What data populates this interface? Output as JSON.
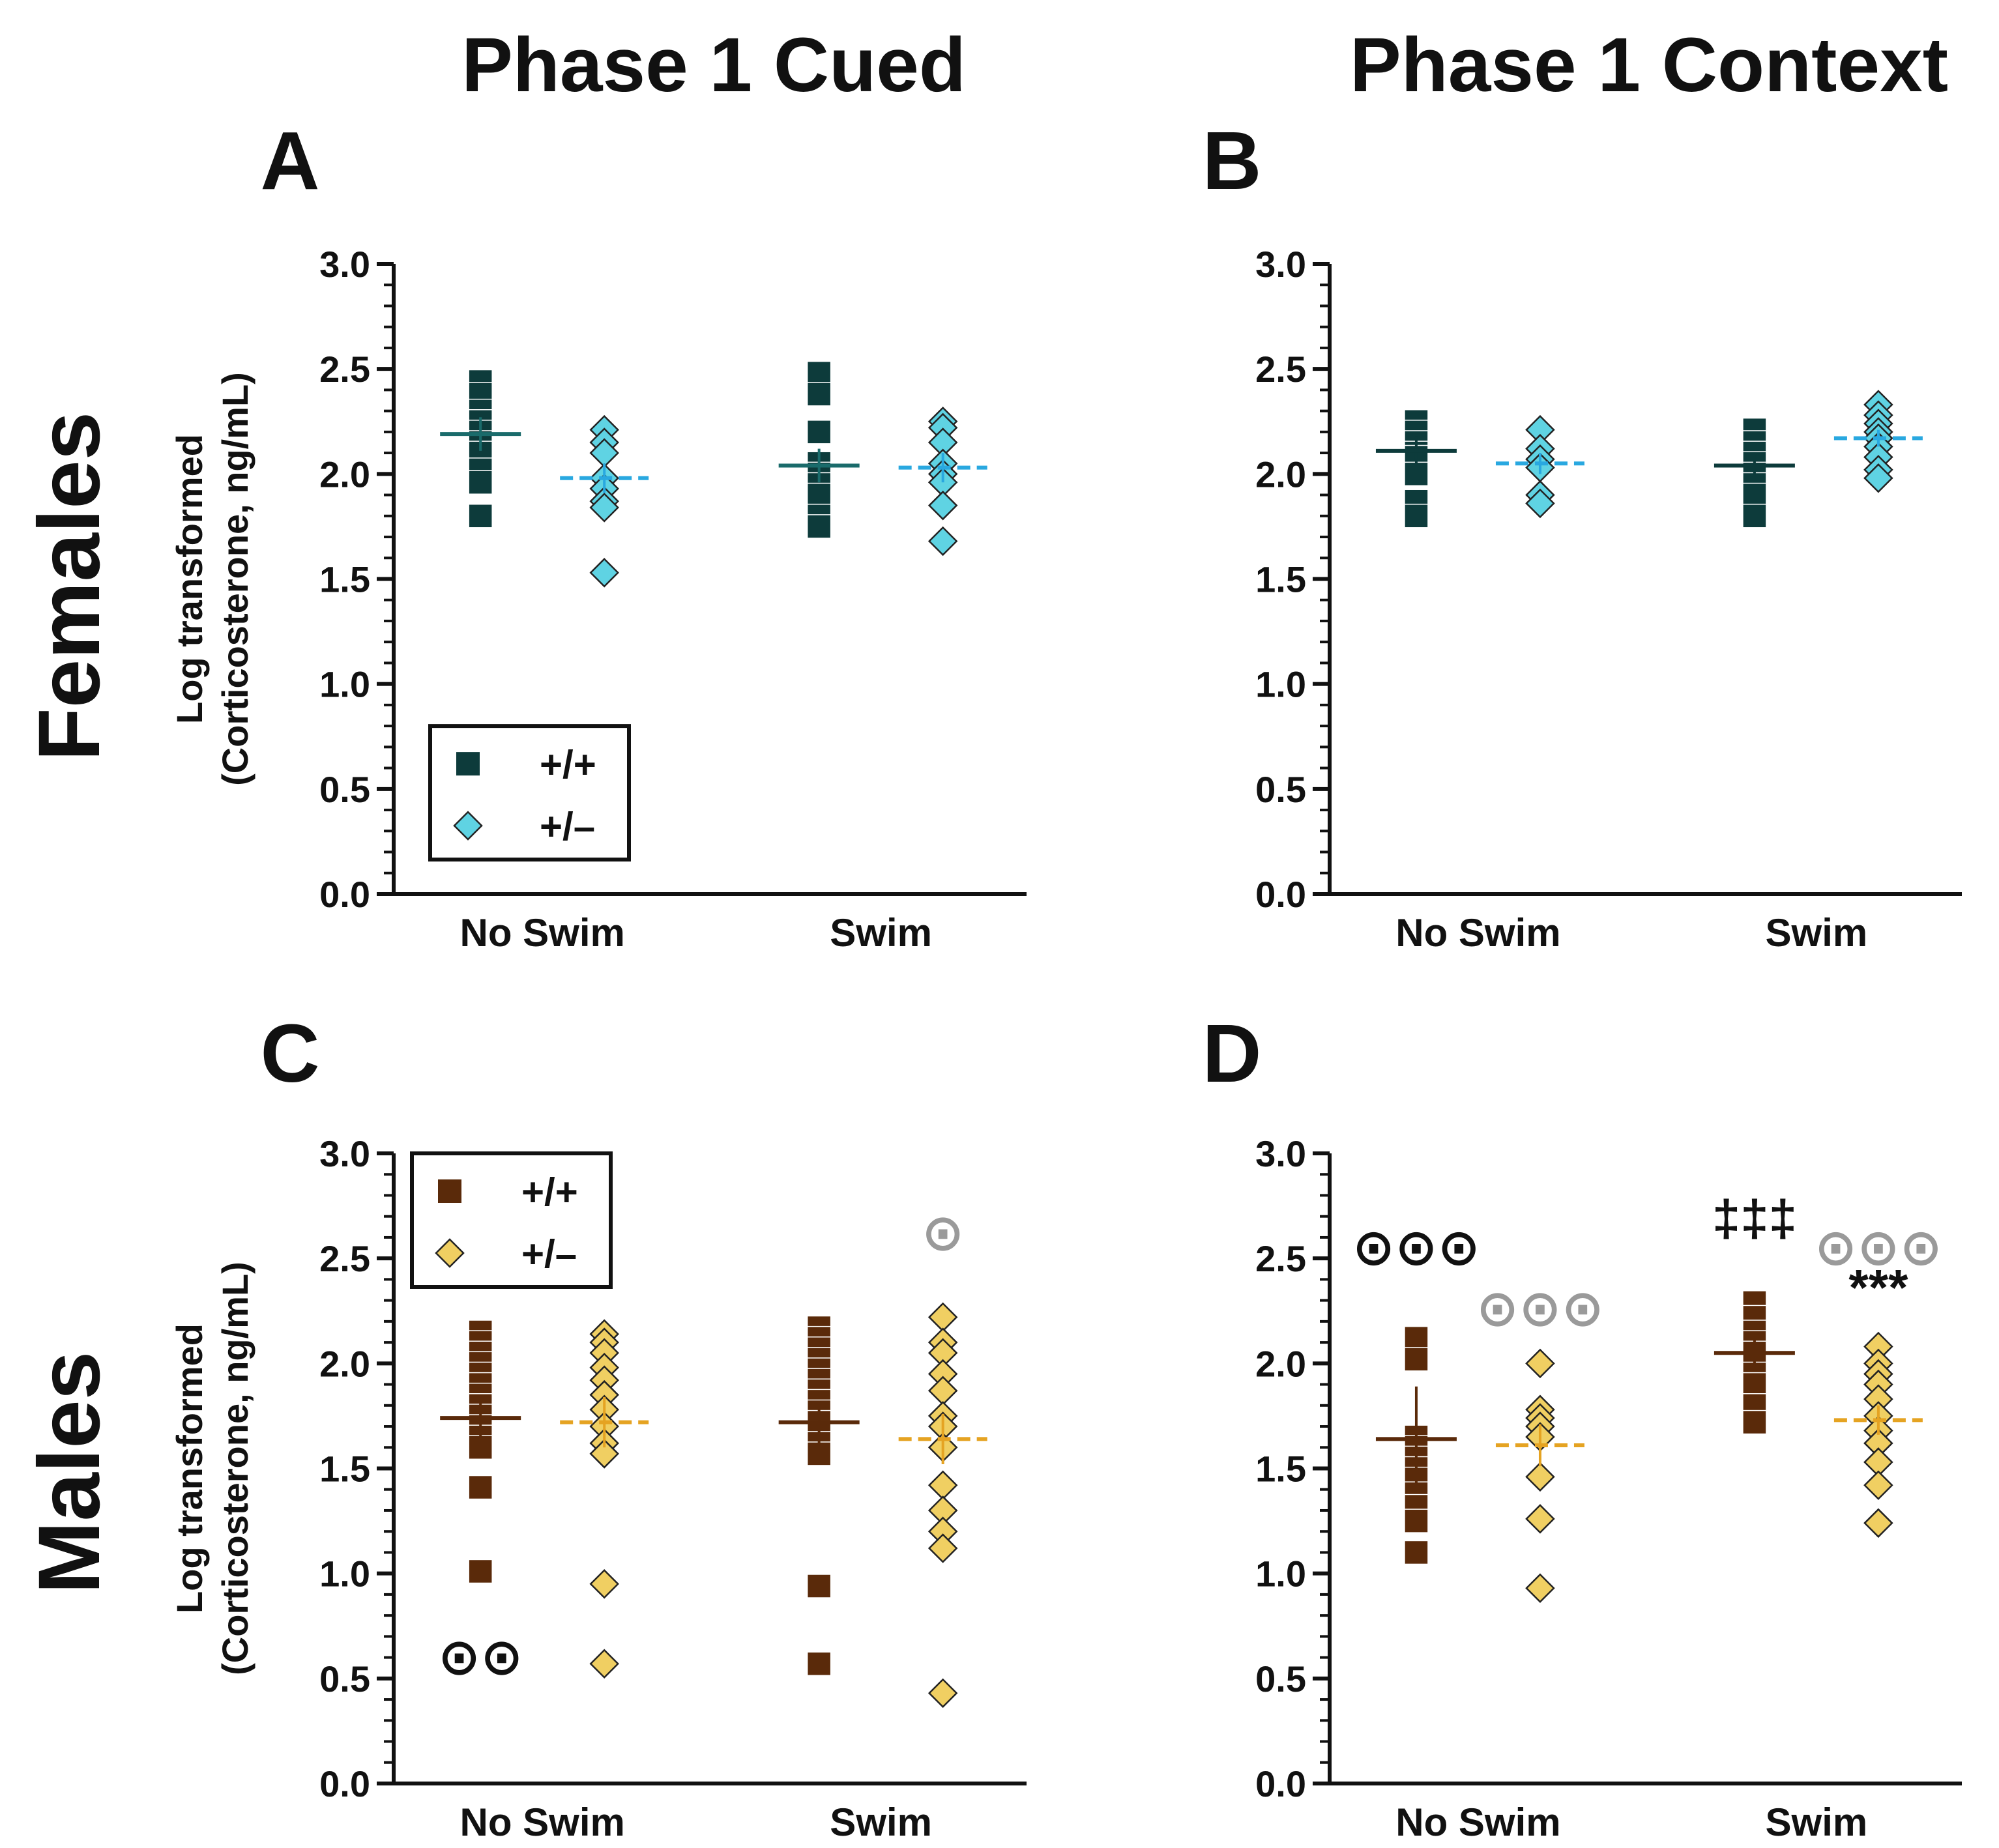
{
  "column_titles": {
    "cued": "Phase 1 Cued",
    "context": "Phase 1 Context"
  },
  "row_labels": {
    "females": "Females",
    "males": "Males"
  },
  "colors": {
    "female_wt": "#0d3b3b",
    "female_het": "#5fd3e3",
    "female_wt_mean": "#1a6b6b",
    "female_het_mean": "#29a8e0",
    "male_wt": "#5a2a0a",
    "male_het": "#f0cf62",
    "male_wt_mean": "#5a2a0a",
    "male_het_mean": "#e5a322",
    "sig_black": "#111111",
    "sig_gray": "#9a9a9a"
  },
  "icons": {
    "wt": "square-marker",
    "het": "diamond-marker",
    "outlier": "circled-dot",
    "significance": "asterisk"
  },
  "chart_data": [
    {
      "panel": "A",
      "type": "scatter",
      "column": "Phase 1 Cued",
      "row": "Females",
      "ylabel_line1": "Log transformed",
      "ylabel_line2": "(Corticosterone, ng/mL)",
      "ylim": [
        0,
        3
      ],
      "yticks": [
        "0.0",
        "0.5",
        "1.0",
        "1.5",
        "2.0",
        "2.5",
        "3.0"
      ],
      "categories": [
        "No Swim",
        "Swim"
      ],
      "legend": {
        "entries": [
          "+/+",
          "+/–"
        ],
        "placement": "bottom-left"
      },
      "series": [
        {
          "name": "+/+",
          "marker": "square",
          "color": "#0d3b3b",
          "mean_color": "#1a6b6b",
          "groups": [
            {
              "category": "No Swim",
              "mean": 2.19,
              "sem": 0.08,
              "values": [
                2.44,
                2.38,
                2.3,
                2.25,
                2.2,
                2.15,
                2.1,
                2.02,
                1.96,
                1.8
              ]
            },
            {
              "category": "Swim",
              "mean": 2.04,
              "sem": 0.08,
              "values": [
                2.48,
                2.38,
                2.2,
                2.05,
                2.0,
                1.95,
                1.9,
                1.8,
                1.75
              ]
            }
          ]
        },
        {
          "name": "+/–",
          "marker": "diamond",
          "color": "#5fd3e3",
          "mean_color": "#29a8e0",
          "groups": [
            {
              "category": "No Swim",
              "mean": 1.98,
              "sem": 0.07,
              "values": [
                2.21,
                2.15,
                2.1,
                1.98,
                1.93,
                1.87,
                1.84,
                1.53
              ]
            },
            {
              "category": "Swim",
              "mean": 2.03,
              "sem": 0.07,
              "values": [
                2.25,
                2.22,
                2.15,
                2.05,
                2.0,
                1.96,
                1.85,
                1.68
              ]
            }
          ]
        }
      ],
      "annotations": []
    },
    {
      "panel": "B",
      "type": "scatter",
      "column": "Phase 1 Context",
      "row": "Females",
      "ylim": [
        0,
        3
      ],
      "yticks": [
        "0.0",
        "0.5",
        "1.0",
        "1.5",
        "2.0",
        "2.5",
        "3.0"
      ],
      "categories": [
        "No Swim",
        "Swim"
      ],
      "series": [
        {
          "name": "+/+",
          "marker": "square",
          "color": "#0d3b3b",
          "mean_color": "#0d3b3b",
          "groups": [
            {
              "category": "No Swim",
              "mean": 2.11,
              "sem": 0.07,
              "values": [
                2.25,
                2.2,
                2.15,
                2.1,
                2.08,
                2.0,
                1.87,
                1.8
              ]
            },
            {
              "category": "Swim",
              "mean": 2.04,
              "sem": 0.05,
              "values": [
                2.21,
                2.15,
                2.1,
                2.05,
                2.0,
                1.95,
                1.9,
                1.8
              ]
            }
          ]
        },
        {
          "name": "+/–",
          "marker": "diamond",
          "color": "#5fd3e3",
          "mean_color": "#29a8e0",
          "groups": [
            {
              "category": "No Swim",
              "mean": 2.05,
              "sem": 0.05,
              "values": [
                2.21,
                2.12,
                2.07,
                2.03,
                1.9,
                1.86
              ]
            },
            {
              "category": "Swim",
              "mean": 2.17,
              "sem": 0.04,
              "values": [
                2.33,
                2.28,
                2.24,
                2.2,
                2.17,
                2.13,
                2.08,
                2.02,
                1.98
              ]
            }
          ]
        }
      ],
      "annotations": []
    },
    {
      "panel": "C",
      "type": "scatter",
      "column": "Phase 1 Cued",
      "row": "Males",
      "ylabel_line1": "Log transformed",
      "ylabel_line2": "(Corticosterone, ng/mL)",
      "ylim": [
        0,
        3
      ],
      "yticks": [
        "0.0",
        "0.5",
        "1.0",
        "1.5",
        "2.0",
        "2.5",
        "3.0"
      ],
      "categories": [
        "No Swim",
        "Swim"
      ],
      "legend": {
        "entries": [
          "+/+",
          "+/–"
        ],
        "placement": "top-left"
      },
      "series": [
        {
          "name": "+/+",
          "marker": "square",
          "color": "#5a2a0a",
          "mean_color": "#5a2a0a",
          "groups": [
            {
              "category": "No Swim",
              "mean": 1.74,
              "sem": 0.1,
              "values": [
                2.15,
                2.1,
                2.05,
                2.0,
                1.95,
                1.9,
                1.85,
                1.8,
                1.75,
                1.7,
                1.65,
                1.6,
                1.41,
                1.01
              ]
            },
            {
              "category": "Swim",
              "mean": 1.72,
              "sem": 0.1,
              "values": [
                2.17,
                2.12,
                2.07,
                2.02,
                1.97,
                1.92,
                1.87,
                1.82,
                1.77,
                1.72,
                1.67,
                1.62,
                1.57,
                0.94,
                0.57
              ]
            }
          ]
        },
        {
          "name": "+/–",
          "marker": "diamond",
          "color": "#f0cf62",
          "mean_color": "#e5a322",
          "groups": [
            {
              "category": "No Swim",
              "mean": 1.72,
              "sem": 0.12,
              "values": [
                2.14,
                2.1,
                2.05,
                1.98,
                1.92,
                1.85,
                1.78,
                1.7,
                1.62,
                1.57,
                0.95,
                0.57
              ]
            },
            {
              "category": "Swim",
              "mean": 1.64,
              "sem": 0.12,
              "values": [
                2.22,
                2.1,
                2.05,
                1.95,
                1.87,
                1.75,
                1.7,
                1.6,
                1.42,
                1.3,
                1.2,
                1.12,
                0.43
              ]
            }
          ]
        }
      ],
      "annotations": [
        {
          "kind": "outlier-symbol",
          "text": "⊙⊙",
          "category": "No Swim",
          "series": "+/+",
          "y": 0.6,
          "color": "black"
        },
        {
          "kind": "outlier-symbol",
          "text": "⊙",
          "category": "Swim",
          "series": "+/–",
          "y": 2.62,
          "color": "gray"
        }
      ]
    },
    {
      "panel": "D",
      "type": "scatter",
      "column": "Phase 1 Context",
      "row": "Males",
      "ylim": [
        0,
        3
      ],
      "yticks": [
        "0.0",
        "0.5",
        "1.0",
        "1.5",
        "2.0",
        "2.5",
        "3.0"
      ],
      "categories": [
        "No Swim",
        "Swim"
      ],
      "series": [
        {
          "name": "+/+",
          "marker": "square",
          "color": "#5a2a0a",
          "mean_color": "#5a2a0a",
          "groups": [
            {
              "category": "No Swim",
              "mean": 1.64,
              "sem": 0.25,
              "values": [
                2.12,
                2.02,
                1.65,
                1.6,
                1.55,
                1.5,
                1.45,
                1.38,
                1.32,
                1.25,
                1.1
              ]
            },
            {
              "category": "Swim",
              "mean": 2.05,
              "sem": 0.06,
              "values": [
                2.29,
                2.22,
                2.15,
                2.1,
                2.05,
                2.0,
                1.95,
                1.9,
                1.8,
                1.72
              ]
            }
          ]
        },
        {
          "name": "+/–",
          "marker": "diamond",
          "color": "#f0cf62",
          "mean_color": "#e5a322",
          "groups": [
            {
              "category": "No Swim",
              "mean": 1.61,
              "sem": 0.1,
              "values": [
                2.0,
                1.78,
                1.74,
                1.7,
                1.65,
                1.46,
                1.26,
                0.93
              ]
            },
            {
              "category": "Swim",
              "mean": 1.73,
              "sem": 0.07,
              "values": [
                2.08,
                2.0,
                1.95,
                1.9,
                1.83,
                1.75,
                1.68,
                1.62,
                1.53,
                1.42,
                1.24
              ]
            }
          ]
        }
      ],
      "annotations": [
        {
          "kind": "sig-symbol",
          "text": "⊙⊙⊙",
          "category": "No Swim",
          "series": "+/+",
          "y": 2.55,
          "color": "black"
        },
        {
          "kind": "sig-symbol",
          "text": "⊙⊙⊙",
          "category": "No Swim",
          "series": "+/–",
          "y": 2.26,
          "color": "gray"
        },
        {
          "kind": "sig-symbol",
          "text": "‡‡‡",
          "category": "Swim",
          "series": "+/+",
          "y": 2.69,
          "color": "black"
        },
        {
          "kind": "sig-symbol",
          "text": "⊙⊙⊙",
          "category": "Swim",
          "series": "+/–",
          "y": 2.55,
          "color": "gray"
        },
        {
          "kind": "sig-symbol",
          "text": "***",
          "category": "Swim",
          "series": "+/–",
          "y": 2.36,
          "color": "black"
        }
      ]
    }
  ]
}
